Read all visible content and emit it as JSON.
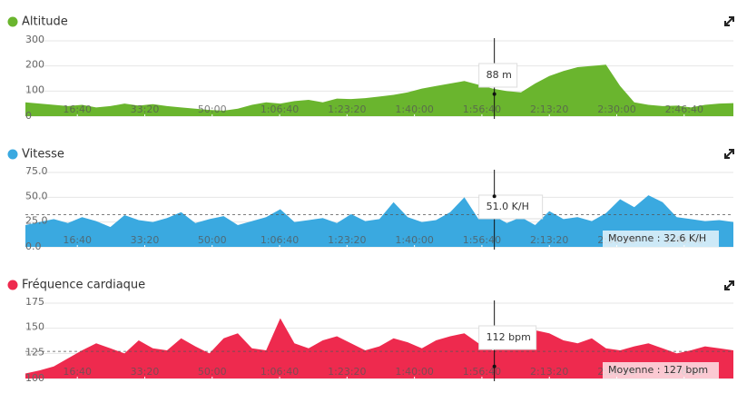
{
  "chart_data": [
    {
      "type": "area",
      "title": "Altitude",
      "color": "#6ab52e",
      "x": [
        230,
        440,
        650,
        860,
        1070,
        1280,
        1490,
        1700,
        1910,
        2120,
        2330,
        2540,
        2750,
        2960,
        3170,
        3380,
        3590,
        3800,
        4010,
        4220,
        4430,
        4640,
        4850,
        5060,
        5270,
        5480,
        5690,
        5900,
        6110,
        6320,
        6530,
        6740,
        6950,
        7160,
        7370,
        7580,
        7790,
        8000,
        8210,
        8420,
        8630,
        8840,
        9050,
        9260,
        9470,
        9680,
        9890,
        10100,
        10310,
        10520,
        10730
      ],
      "values": [
        55,
        50,
        45,
        40,
        45,
        35,
        40,
        50,
        42,
        48,
        40,
        35,
        30,
        25,
        22,
        30,
        45,
        55,
        50,
        60,
        65,
        55,
        70,
        68,
        72,
        78,
        85,
        95,
        110,
        120,
        130,
        140,
        125,
        110,
        100,
        95,
        130,
        160,
        180,
        195,
        200,
        205,
        120,
        55,
        45,
        40,
        42,
        35,
        45,
        50,
        52
      ],
      "xlim": [
        230,
        10730
      ],
      "xticks": [
        {
          "value": 1000,
          "label": "16:40"
        },
        {
          "value": 2000,
          "label": "33:20"
        },
        {
          "value": 3000,
          "label": "50:00"
        },
        {
          "value": 4000,
          "label": "1:06:40"
        },
        {
          "value": 5000,
          "label": "1:23:20"
        },
        {
          "value": 6000,
          "label": "1:40:00"
        },
        {
          "value": 7000,
          "label": "1:56:40"
        },
        {
          "value": 8000,
          "label": "2:13:20"
        },
        {
          "value": 9000,
          "label": "2:30:00"
        },
        {
          "value": 10000,
          "label": "2:46:40"
        }
      ],
      "ylim": [
        0,
        300
      ],
      "yticks": [
        0,
        100,
        200,
        300
      ],
      "grid": true,
      "cursor_x": 7185,
      "tooltip": {
        "value": 88,
        "label": "88 m"
      }
    },
    {
      "type": "area",
      "title": "Vitesse",
      "color": "#3aa9e0",
      "x": [
        230,
        440,
        650,
        860,
        1070,
        1280,
        1490,
        1700,
        1910,
        2120,
        2330,
        2540,
        2750,
        2960,
        3170,
        3380,
        3590,
        3800,
        4010,
        4220,
        4430,
        4640,
        4850,
        5060,
        5270,
        5480,
        5690,
        5900,
        6110,
        6320,
        6530,
        6740,
        6950,
        7160,
        7370,
        7580,
        7790,
        8000,
        8210,
        8420,
        8630,
        8840,
        9050,
        9260,
        9470,
        9680,
        9890,
        10100,
        10310,
        10520,
        10730
      ],
      "values": [
        22,
        25,
        28,
        24,
        30,
        26,
        20,
        32,
        27,
        25,
        29,
        35,
        24,
        28,
        31,
        22,
        26,
        30,
        38,
        25,
        27,
        29,
        24,
        33,
        26,
        28,
        45,
        30,
        25,
        27,
        35,
        50,
        28,
        32,
        24,
        30,
        22,
        36,
        28,
        30,
        26,
        34,
        48,
        40,
        52,
        45,
        30,
        28,
        26,
        27,
        25
      ],
      "xlim": [
        230,
        10730
      ],
      "xticks": [
        {
          "value": 1000,
          "label": "16:40"
        },
        {
          "value": 2000,
          "label": "33:20"
        },
        {
          "value": 3000,
          "label": "50:00"
        },
        {
          "value": 4000,
          "label": "1:06:40"
        },
        {
          "value": 5000,
          "label": "1:23:20"
        },
        {
          "value": 6000,
          "label": "1:40:00"
        },
        {
          "value": 7000,
          "label": "1:56:40"
        },
        {
          "value": 8000,
          "label": "2:13:20"
        },
        {
          "value": 9000,
          "label": "2:30:00"
        },
        {
          "value": 10000,
          "label": "2:46:40"
        }
      ],
      "ylim": [
        0,
        75
      ],
      "yticks": [
        {
          "value": 0,
          "label": "0.0"
        },
        {
          "value": 25,
          "label": "25.0"
        },
        {
          "value": 50,
          "label": "50.0"
        },
        {
          "value": 75,
          "label": "75.0"
        }
      ],
      "grid": true,
      "cursor_x": 7185,
      "tooltip": {
        "value": 51,
        "label": "51.0 K/H"
      },
      "average": {
        "value": 32.6,
        "label": "Moyenne : 32.6 K/H"
      }
    },
    {
      "type": "area",
      "title": "Fréquence cardiaque",
      "color": "#ee2a4e",
      "x": [
        230,
        440,
        650,
        860,
        1070,
        1280,
        1490,
        1700,
        1910,
        2120,
        2330,
        2540,
        2750,
        2960,
        3170,
        3380,
        3590,
        3800,
        4010,
        4220,
        4430,
        4640,
        4850,
        5060,
        5270,
        5480,
        5690,
        5900,
        6110,
        6320,
        6530,
        6740,
        6950,
        7160,
        7370,
        7580,
        7790,
        8000,
        8210,
        8420,
        8630,
        8840,
        9050,
        9260,
        9470,
        9680,
        9890,
        10100,
        10310,
        10520,
        10730
      ],
      "values": [
        105,
        108,
        112,
        120,
        128,
        135,
        130,
        125,
        138,
        130,
        128,
        140,
        132,
        125,
        140,
        145,
        130,
        128,
        160,
        135,
        130,
        138,
        142,
        135,
        128,
        132,
        140,
        136,
        130,
        138,
        142,
        145,
        135,
        128,
        130,
        140,
        148,
        145,
        138,
        135,
        140,
        130,
        128,
        132,
        135,
        130,
        125,
        128,
        132,
        130,
        128
      ],
      "xlim": [
        230,
        10730
      ],
      "xticks": [
        {
          "value": 1000,
          "label": "16:40"
        },
        {
          "value": 2000,
          "label": "33:20"
        },
        {
          "value": 3000,
          "label": "50:00"
        },
        {
          "value": 4000,
          "label": "1:06:40"
        },
        {
          "value": 5000,
          "label": "1:23:20"
        },
        {
          "value": 6000,
          "label": "1:40:00"
        },
        {
          "value": 7000,
          "label": "1:56:40"
        },
        {
          "value": 8000,
          "label": "2:13:20"
        },
        {
          "value": 9000,
          "label": "2:30:00"
        },
        {
          "value": 10000,
          "label": "2:46:40"
        }
      ],
      "ylim": [
        100,
        175
      ],
      "yticks": [
        100,
        125,
        150,
        175
      ],
      "grid": true,
      "cursor_x": 7185,
      "tooltip": {
        "value": 112,
        "label": "112 bpm"
      },
      "average": {
        "value": 127,
        "label": "Moyenne : 127 bpm"
      }
    }
  ]
}
